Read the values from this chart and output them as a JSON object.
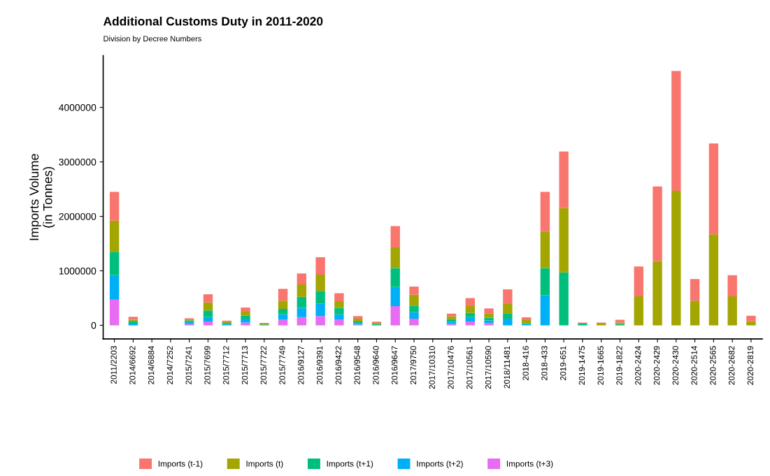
{
  "chart_data": {
    "type": "bar",
    "title": "Additional Customs Duty in 2011-2020",
    "subtitle": "Division by Decree Numbers",
    "ylabel": "Imports Volume\n(in Tonnes)",
    "categories": [
      "2011/2203",
      "2014/6692",
      "2014/6884",
      "2014/7252",
      "2015/7241",
      "2015/7699",
      "2015/7712",
      "2015/7713",
      "2015/7722",
      "2015/7749",
      "2016/9127",
      "2016/9391",
      "2016/9422",
      "2016/9548",
      "2016/9640",
      "2016/9647",
      "2017/9750",
      "2017/10310",
      "2017/10476",
      "2017/10561",
      "2017/10590",
      "2018/11481",
      "2018-416",
      "2018-433",
      "2019-651",
      "2019-1475",
      "2019-1665",
      "2019-1822",
      "2020-2424",
      "2020-2429",
      "2020-2430",
      "2020-2514",
      "2020-2565",
      "2020-2682",
      "2020-2819"
    ],
    "stacked": true,
    "series": [
      {
        "name": "Imports (t+3)",
        "color": "#e76bf3",
        "values": [
          470000,
          null,
          0,
          0,
          20000,
          70000,
          null,
          50000,
          0,
          100000,
          150000,
          170000,
          100000,
          15000,
          0,
          350000,
          120000,
          0,
          25000,
          70000,
          40000,
          0,
          0,
          0,
          0,
          0,
          0,
          0,
          0,
          0,
          0,
          0,
          0,
          0,
          0
        ]
      },
      {
        "name": "Imports (t+2)",
        "color": "#00b0f6",
        "values": [
          450000,
          30000,
          0,
          0,
          40000,
          80000,
          20000,
          70000,
          0,
          100000,
          170000,
          230000,
          100000,
          25000,
          null,
          350000,
          120000,
          0,
          40000,
          80000,
          50000,
          120000,
          20000,
          550000,
          0,
          0,
          0,
          0,
          0,
          0,
          0,
          0,
          0,
          0,
          0
        ]
      },
      {
        "name": "Imports (t+1)",
        "color": "#00bf7d",
        "values": [
          430000,
          50000,
          0,
          0,
          30000,
          120000,
          25000,
          55000,
          15000,
          100000,
          200000,
          230000,
          120000,
          30000,
          25000,
          350000,
          120000,
          0,
          50000,
          80000,
          50000,
          100000,
          20000,
          500000,
          970000,
          30000,
          0,
          20000,
          0,
          0,
          0,
          0,
          0,
          0,
          0
        ]
      },
      {
        "name": "Imports (t)",
        "color": "#a3a500",
        "values": [
          570000,
          20000,
          0,
          0,
          20000,
          150000,
          20000,
          75000,
          15000,
          150000,
          230000,
          300000,
          120000,
          50000,
          20000,
          380000,
          200000,
          0,
          50000,
          120000,
          80000,
          170000,
          55000,
          670000,
          1180000,
          0,
          30000,
          30000,
          530000,
          1180000,
          2470000,
          450000,
          1670000,
          530000,
          75000
        ]
      },
      {
        "name": "Imports (t-1)",
        "color": "#f8766d",
        "values": [
          530000,
          55000,
          0,
          0,
          20000,
          150000,
          20000,
          75000,
          15000,
          220000,
          200000,
          320000,
          150000,
          50000,
          20000,
          390000,
          150000,
          0,
          50000,
          150000,
          90000,
          270000,
          50000,
          730000,
          1040000,
          20000,
          20000,
          50000,
          550000,
          1370000,
          2200000,
          400000,
          1670000,
          390000,
          100000
        ]
      }
    ],
    "ylim": [
      -250000,
      4950000
    ],
    "yticks": [
      0,
      1000000,
      2000000,
      3000000,
      4000000
    ],
    "grid": false,
    "legend": "bottom"
  }
}
